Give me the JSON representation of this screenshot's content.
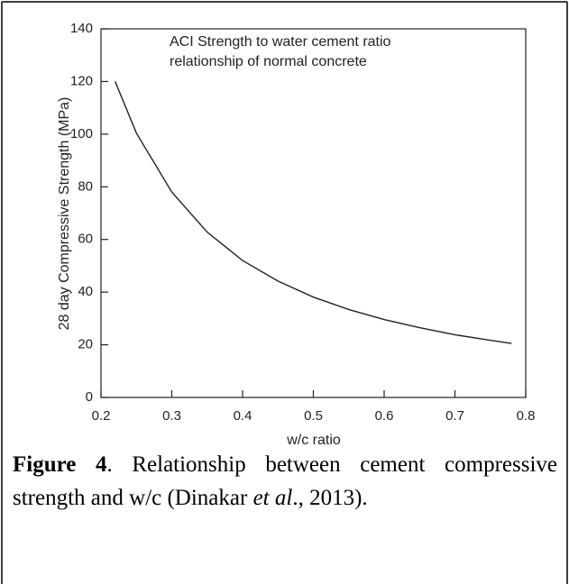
{
  "chart_data": {
    "type": "line",
    "annotation": [
      "ACI Strength to water cement ratio",
      "relationship of normal concrete"
    ],
    "x_label": "w/c ratio",
    "y_label": "28 day Compressive Strength (MPa)",
    "x": [
      0.22,
      0.25,
      0.3,
      0.35,
      0.4,
      0.45,
      0.5,
      0.55,
      0.6,
      0.65,
      0.7,
      0.75,
      0.78
    ],
    "series": [
      {
        "color": "#222222",
        "values": [
          120,
          100.4,
          78,
          62.8,
          52,
          44.2,
          38.1,
          33.4,
          29.6,
          26.5,
          23.8,
          21.7,
          20.5
        ]
      }
    ],
    "xlim": [
      0.2,
      0.8
    ],
    "xticks": [
      0.2,
      0.3,
      0.4,
      0.5,
      0.6,
      0.7,
      0.8
    ],
    "ylim": [
      0,
      140
    ],
    "yticks": [
      0,
      20,
      40,
      60,
      80,
      100,
      120,
      140
    ]
  },
  "caption": {
    "label": "Figure 4",
    "text_1": ". Relationship between cement compressive strength and w/c (Dinakar ",
    "italic": "et al",
    "text_2": "., 2013)."
  }
}
